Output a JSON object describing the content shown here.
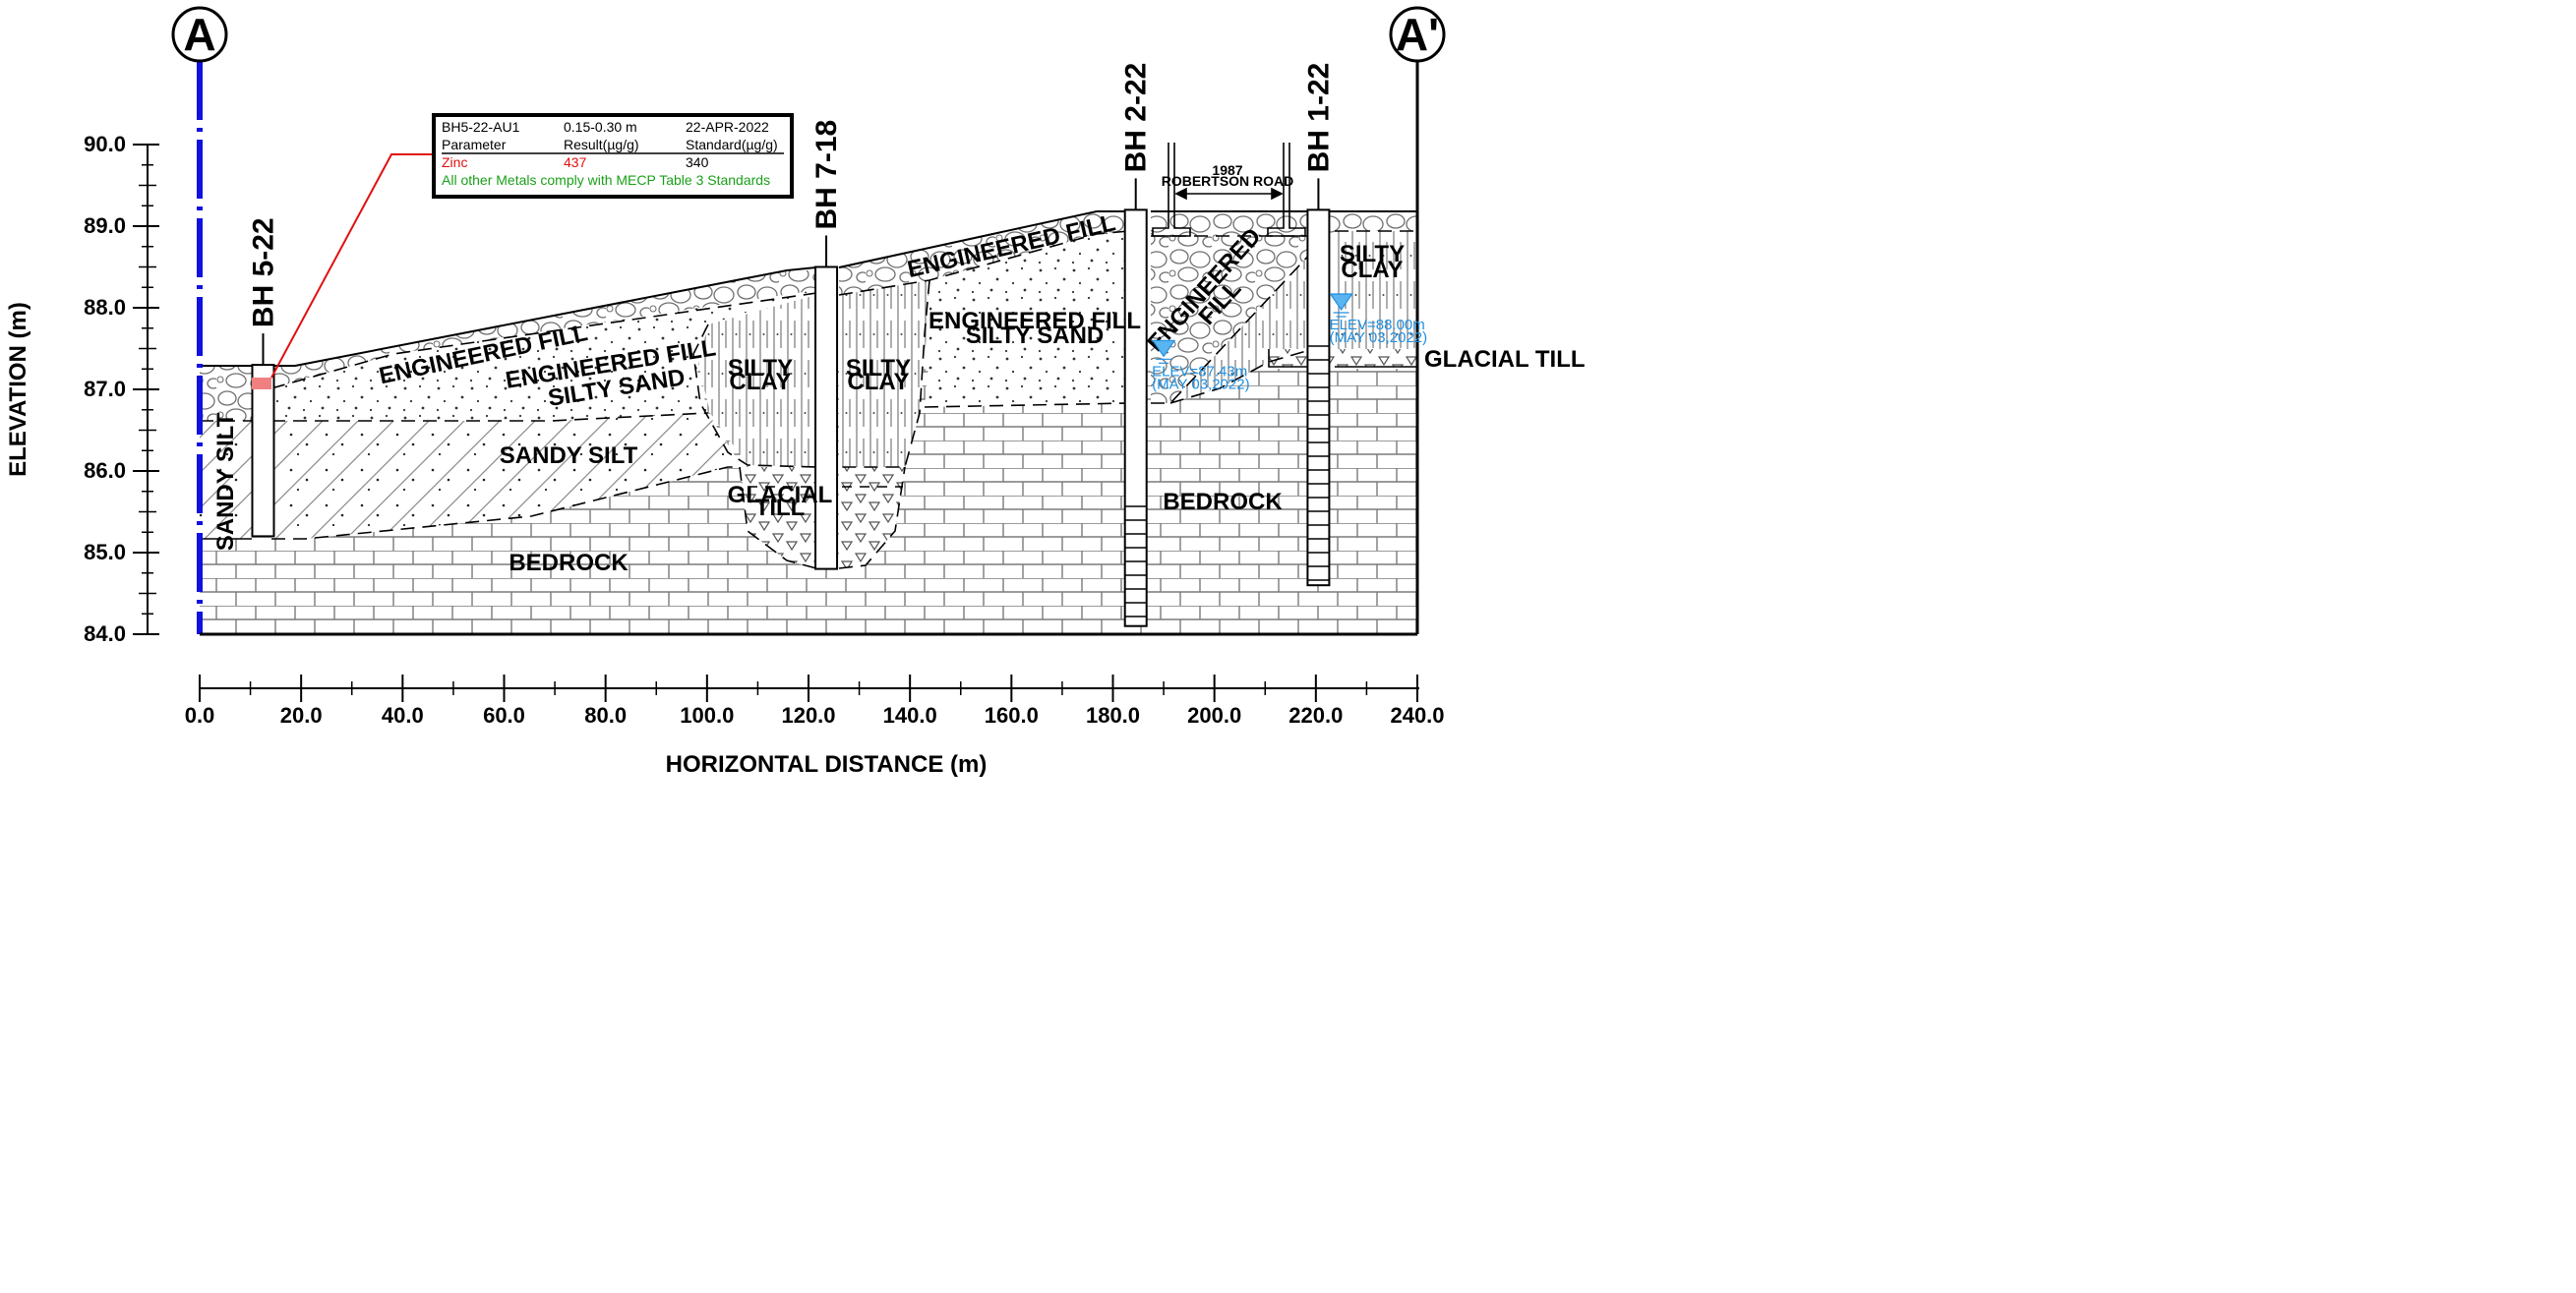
{
  "section_markers": {
    "left": "A",
    "right": "A'"
  },
  "axes": {
    "y_title": "ELEVATION (m)",
    "x_title": "HORIZONTAL DISTANCE (m)",
    "y_ticks": [
      "90.0",
      "89.0",
      "88.0",
      "87.0",
      "86.0",
      "85.0",
      "84.0"
    ],
    "x_ticks": [
      "0.0",
      "20.0",
      "40.0",
      "60.0",
      "80.0",
      "100.0",
      "120.0",
      "140.0",
      "160.0",
      "180.0",
      "200.0",
      "220.0",
      "240.0"
    ],
    "y_range": [
      84.0,
      90.0
    ],
    "x_range": [
      0.0,
      240.0
    ]
  },
  "boreholes": [
    {
      "id": "BH 5-22",
      "distance_m": 12.5,
      "top_elev_m": 87.3,
      "bottom_elev_m": 85.2
    },
    {
      "id": "BH 7-18",
      "distance_m": 123.5,
      "top_elev_m": 88.5,
      "bottom_elev_m": 84.8
    },
    {
      "id": "BH 2-22",
      "distance_m": 184.5,
      "top_elev_m": 89.2,
      "bottom_elev_m": 84.1
    },
    {
      "id": "BH 1-22",
      "distance_m": 220.5,
      "top_elev_m": 89.2,
      "bottom_elev_m": 84.6
    }
  ],
  "layers": {
    "engineered_fill": "ENGINEERED FILL",
    "engineered_fill_silty_sand_1": "ENGINEERED FILL",
    "engineered_fill_silty_sand_2": "SILTY SAND",
    "sandy_silt": "SANDY SILT",
    "sandy_silt_vertical": "SANDY SILT",
    "silty_clay_1": "SILTY",
    "silty_clay_2": "CLAY",
    "glacial_till_1": "GLACIAL",
    "glacial_till_2": "TILL",
    "bedrock": "BEDROCK",
    "engineered_fill_right": "ENGINEERED FILL",
    "engineered_fill_center_1": "ENGINEERED FILL",
    "engineered_fill_center_2": "SILTY SAND",
    "engineered_fill_wedge_1": "ENGINEERED",
    "engineered_fill_wedge_2": "FILL",
    "glacial_till_right": "GLACIAL TILL"
  },
  "road": {
    "line1": "1987",
    "line2": "ROBERTSON ROAD"
  },
  "water_levels": [
    {
      "elev_text": "ELEV=87.43m",
      "date_text": "(MAY 03,2022)",
      "distance_m": 190.0,
      "elevation_m": 87.43
    },
    {
      "elev_text": "ELEV=88.00m",
      "date_text": "(MAY 03,2022)",
      "distance_m": 225.0,
      "elevation_m": 88.0
    }
  ],
  "sample_table": {
    "row1": [
      "BH5-22-AU1",
      "0.15-0.30 m",
      "22-APR-2022"
    ],
    "row2": [
      "Parameter",
      "Result(µg/g)",
      "Standard(µg/g)"
    ],
    "row3": [
      "Zinc",
      "437",
      "340"
    ],
    "note": "All other Metals comply with MECP Table 3 Standards"
  },
  "colors": {
    "exceedance": "#e01010",
    "compliance_note": "#1aa01a",
    "water": "#1f8fe0",
    "section_line": "#1010e0",
    "sample_marker": "#f08080"
  }
}
